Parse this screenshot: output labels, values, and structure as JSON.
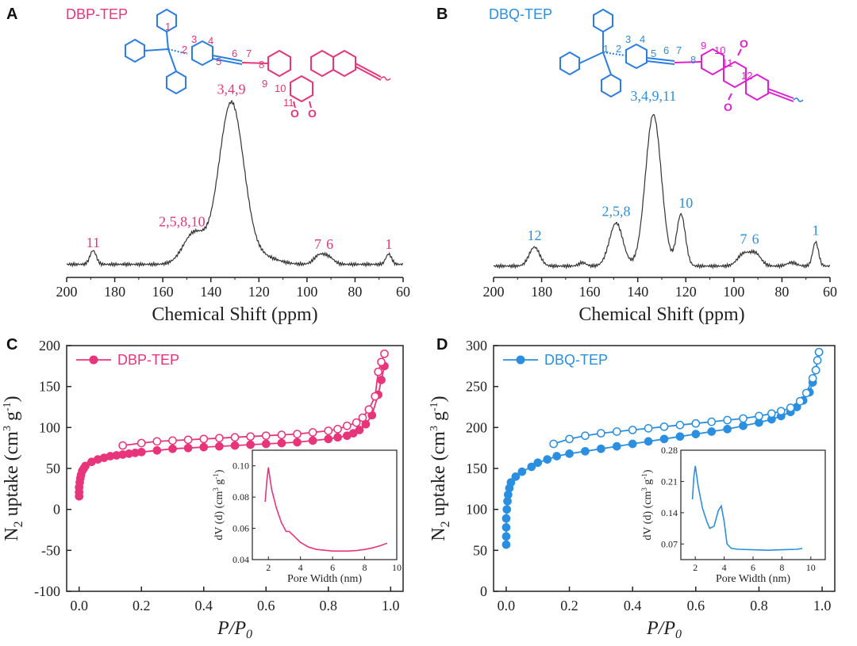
{
  "colors": {
    "pink": "#e8347a",
    "blue": "#2a8fe0",
    "magenta": "#e020d0",
    "struct_blue": "#2a7fe0",
    "black": "#333333"
  },
  "panels": {
    "A": {
      "letter": "A",
      "structure_title": "DBP-TEP"
    },
    "B": {
      "letter": "B",
      "structure_title": "DBQ-TEP"
    },
    "C": {
      "letter": "C"
    },
    "D": {
      "letter": "D"
    }
  },
  "structure_labels": {
    "A": {
      "atoms": [
        "1",
        "2",
        "3",
        "4",
        "5",
        "6",
        "7",
        "8",
        "9",
        "10",
        "11"
      ],
      "oxygens": [
        "O",
        "O"
      ]
    },
    "B": {
      "atoms": [
        "1",
        "2",
        "3",
        "4",
        "5",
        "6",
        "7",
        "8",
        "9",
        "10",
        "11",
        "12"
      ],
      "oxygens": [
        "O",
        "O"
      ]
    }
  },
  "chart_data": [
    {
      "id": "A",
      "type": "line",
      "title": "DBP-TEP",
      "xlabel": "Chemical Shift (ppm)",
      "ylabel": "",
      "xlim": [
        200,
        60
      ],
      "ylim": [
        0,
        1.05
      ],
      "xticks": [
        200,
        180,
        160,
        140,
        120,
        100,
        80,
        60
      ],
      "baseline": 0.03,
      "peaks": [
        {
          "x": 189,
          "h": 0.08,
          "w": 1.3
        },
        {
          "x": 147,
          "h": 0.18,
          "w": 4.5
        },
        {
          "x": 131.5,
          "h": 0.94,
          "w": 5.2
        },
        {
          "x": 118,
          "h": 0.04,
          "w": 6
        },
        {
          "x": 95,
          "h": 0.05,
          "w": 2.2
        },
        {
          "x": 91,
          "h": 0.04,
          "w": 2.2
        },
        {
          "x": 66,
          "h": 0.06,
          "w": 1.2
        }
      ],
      "peak_labels": [
        {
          "text": "11",
          "x": 189,
          "y": 0.13
        },
        {
          "text": "2,5,8,10",
          "x": 152,
          "y": 0.25
        },
        {
          "text": "3,4,9",
          "x": 131.5,
          "y": 1.02
        },
        {
          "text": "7",
          "x": 95.5,
          "y": 0.12
        },
        {
          "text": "6",
          "x": 90.5,
          "y": 0.12
        },
        {
          "text": "1",
          "x": 66,
          "y": 0.12
        }
      ]
    },
    {
      "id": "B",
      "type": "line",
      "title": "DBQ-TEP",
      "xlabel": "Chemical Shift (ppm)",
      "ylabel": "",
      "xlim": [
        200,
        60
      ],
      "ylim": [
        0,
        1.05
      ],
      "xticks": [
        200,
        180,
        160,
        140,
        120,
        100,
        80,
        60
      ],
      "baseline": 0.02,
      "peaks": [
        {
          "x": 183,
          "h": 0.11,
          "w": 2.2
        },
        {
          "x": 163,
          "h": 0.02,
          "w": 1.5
        },
        {
          "x": 149,
          "h": 0.25,
          "w": 2.8
        },
        {
          "x": 133.5,
          "h": 0.88,
          "w": 3.3
        },
        {
          "x": 122,
          "h": 0.3,
          "w": 1.8
        },
        {
          "x": 96,
          "h": 0.07,
          "w": 2.5
        },
        {
          "x": 91,
          "h": 0.07,
          "w": 2.3
        },
        {
          "x": 76,
          "h": 0.02,
          "w": 2
        },
        {
          "x": 66,
          "h": 0.14,
          "w": 1.2
        }
      ],
      "peak_labels": [
        {
          "text": "12",
          "x": 183,
          "y": 0.17
        },
        {
          "text": "2,5,8",
          "x": 149,
          "y": 0.31
        },
        {
          "text": "3,4,9,11",
          "x": 133.5,
          "y": 0.98
        },
        {
          "text": "10",
          "x": 120,
          "y": 0.36
        },
        {
          "text": "7",
          "x": 96,
          "y": 0.15
        },
        {
          "text": "6",
          "x": 91,
          "y": 0.15
        },
        {
          "text": "1",
          "x": 66,
          "y": 0.2
        }
      ]
    },
    {
      "id": "C",
      "type": "scatter",
      "xlabel": "P/P0",
      "ylabel": "N2 uptake (cm3 g-1)",
      "xlim": [
        -0.04,
        1.04
      ],
      "ylim": [
        -100,
        200
      ],
      "xticks": [
        0.0,
        0.2,
        0.4,
        0.6,
        0.8,
        1.0
      ],
      "yticks": [
        -100,
        -50,
        0,
        50,
        100,
        150,
        200
      ],
      "xtick_labels": [
        "0.0",
        "0.2",
        "0.4",
        "0.6",
        "0.8",
        "1.0"
      ],
      "legend": "DBP-TEP",
      "series": [
        {
          "name": "adsorption",
          "fill": "filled",
          "x": [
            0.0,
            0.0,
            0.0,
            0.002,
            0.004,
            0.006,
            0.01,
            0.015,
            0.02,
            0.04,
            0.06,
            0.08,
            0.1,
            0.12,
            0.14,
            0.16,
            0.18,
            0.2,
            0.25,
            0.3,
            0.35,
            0.4,
            0.45,
            0.5,
            0.55,
            0.6,
            0.65,
            0.7,
            0.75,
            0.8,
            0.83,
            0.86,
            0.88,
            0.9,
            0.92,
            0.94,
            0.96,
            0.97,
            0.98
          ],
          "y": [
            16,
            21,
            27,
            33,
            38,
            42,
            47,
            50,
            53,
            58,
            61,
            63,
            65,
            66,
            67,
            68,
            69,
            70,
            72,
            74,
            75,
            76,
            77,
            78,
            79,
            80,
            81,
            82,
            84,
            86,
            88,
            90,
            93,
            97,
            104,
            115,
            140,
            158,
            175
          ]
        },
        {
          "name": "desorption",
          "fill": "open",
          "x": [
            0.98,
            0.97,
            0.96,
            0.95,
            0.93,
            0.91,
            0.89,
            0.86,
            0.83,
            0.8,
            0.75,
            0.7,
            0.65,
            0.6,
            0.55,
            0.5,
            0.45,
            0.4,
            0.35,
            0.3,
            0.25,
            0.2,
            0.14
          ],
          "y": [
            190,
            180,
            168,
            138,
            122,
            112,
            106,
            102,
            98,
            96,
            94,
            92,
            91,
            90,
            89,
            88,
            87,
            86,
            85,
            84,
            83,
            81,
            78
          ]
        }
      ],
      "inset": {
        "type": "line",
        "xlabel": "Pore Width (nm)",
        "ylabel": "dV (d) (cm3 g-1)",
        "xlim": [
          1,
          10
        ],
        "ylim": [
          0.04,
          0.11
        ],
        "xticks": [
          2,
          4,
          6,
          8,
          10
        ],
        "yticks": [
          0.04,
          0.06,
          0.08,
          0.1
        ],
        "ytick_labels": [
          "0.04",
          "0.06",
          "0.08",
          "0.10"
        ],
        "x": [
          1.8,
          1.9,
          2.0,
          2.2,
          2.5,
          2.8,
          3.1,
          3.3,
          3.6,
          4.0,
          4.5,
          5.0,
          5.5,
          6.0,
          6.5,
          7.0,
          7.5,
          8.0,
          8.5,
          9.0,
          9.4
        ],
        "y": [
          0.077,
          0.09,
          0.099,
          0.085,
          0.073,
          0.064,
          0.058,
          0.058,
          0.055,
          0.051,
          0.048,
          0.0465,
          0.046,
          0.0455,
          0.0455,
          0.0455,
          0.0458,
          0.0465,
          0.0475,
          0.049,
          0.0505
        ]
      }
    },
    {
      "id": "D",
      "type": "scatter",
      "xlabel": "P/P0",
      "ylabel": "N2 uptake (cm3 g-1)",
      "xlim": [
        -0.04,
        1.04
      ],
      "ylim": [
        0,
        300
      ],
      "xticks": [
        0.0,
        0.2,
        0.4,
        0.6,
        0.8,
        1.0
      ],
      "yticks": [
        0,
        50,
        100,
        150,
        200,
        250,
        300
      ],
      "xtick_labels": [
        "0.0",
        "0.2",
        "0.4",
        "0.6",
        "0.8",
        "1.0"
      ],
      "legend": "DBQ-TEP",
      "series": [
        {
          "name": "adsorption",
          "fill": "filled",
          "x": [
            0.0,
            0.0,
            0.0,
            0.0,
            0.002,
            0.004,
            0.006,
            0.01,
            0.015,
            0.03,
            0.05,
            0.08,
            0.1,
            0.13,
            0.16,
            0.2,
            0.25,
            0.3,
            0.35,
            0.4,
            0.45,
            0.5,
            0.55,
            0.6,
            0.65,
            0.7,
            0.75,
            0.8,
            0.84,
            0.87,
            0.9,
            0.92,
            0.94,
            0.96,
            0.97,
            0.98,
            0.99
          ],
          "y": [
            57,
            67,
            78,
            89,
            100,
            110,
            118,
            126,
            133,
            140,
            146,
            152,
            157,
            161,
            165,
            168,
            171,
            174,
            177,
            180,
            183,
            186,
            189,
            192,
            195,
            198,
            202,
            206,
            210,
            214,
            219,
            225,
            233,
            243,
            255,
            270,
            292
          ]
        },
        {
          "name": "desorption",
          "fill": "open",
          "x": [
            0.99,
            0.985,
            0.98,
            0.97,
            0.95,
            0.93,
            0.9,
            0.87,
            0.84,
            0.8,
            0.75,
            0.7,
            0.65,
            0.6,
            0.55,
            0.5,
            0.45,
            0.4,
            0.35,
            0.3,
            0.25,
            0.2,
            0.15
          ],
          "y": [
            292,
            282,
            270,
            260,
            242,
            232,
            224,
            220,
            217,
            214,
            211,
            209,
            207,
            205,
            203,
            201,
            199,
            197,
            195,
            193,
            190,
            186,
            180
          ]
        }
      ],
      "inset": {
        "type": "line",
        "xlabel": "Pore Width (nm)",
        "ylabel": "dV (d) (cm3 g-1)",
        "xlim": [
          1,
          11
        ],
        "ylim": [
          0.035,
          0.28
        ],
        "xticks": [
          2,
          4,
          6,
          8,
          10
        ],
        "yticks": [
          0.07,
          0.14,
          0.21,
          0.28
        ],
        "ytick_labels": [
          "0.07",
          "0.14",
          "0.21",
          "0.28"
        ],
        "x": [
          1.8,
          1.9,
          2.0,
          2.2,
          2.5,
          2.8,
          3.0,
          3.3,
          3.6,
          3.8,
          4.0,
          4.2,
          4.5,
          5.0,
          6.0,
          7.0,
          8.0,
          9.0,
          9.4
        ],
        "y": [
          0.17,
          0.22,
          0.245,
          0.2,
          0.15,
          0.12,
          0.105,
          0.11,
          0.145,
          0.155,
          0.12,
          0.07,
          0.06,
          0.058,
          0.057,
          0.056,
          0.057,
          0.058,
          0.06
        ]
      }
    }
  ]
}
